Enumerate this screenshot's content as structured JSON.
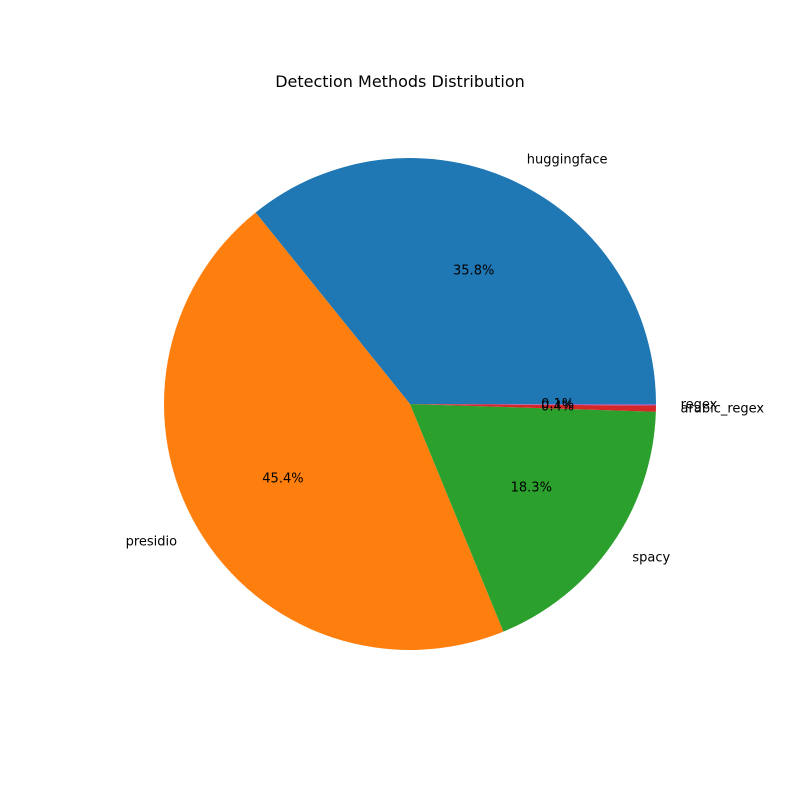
{
  "chart_data": {
    "type": "pie",
    "title": "Detection Methods Distribution",
    "start_angle_deg": 0,
    "direction": "counterclockwise",
    "slices": [
      {
        "label": "huggingface",
        "value": 35.8,
        "pct_label": "35.8%",
        "color": "#1f77b4"
      },
      {
        "label": "presidio",
        "value": 45.4,
        "pct_label": "45.4%",
        "color": "#ff7f0e"
      },
      {
        "label": "spacy",
        "value": 18.3,
        "pct_label": "18.3%",
        "color": "#2ca02c"
      },
      {
        "label": "arabic_regex",
        "value": 0.4,
        "pct_label": "0.4%",
        "color": "#d62728"
      },
      {
        "label": "regex",
        "value": 0.1,
        "pct_label": "0.1%",
        "color": "#9467bd"
      }
    ]
  }
}
